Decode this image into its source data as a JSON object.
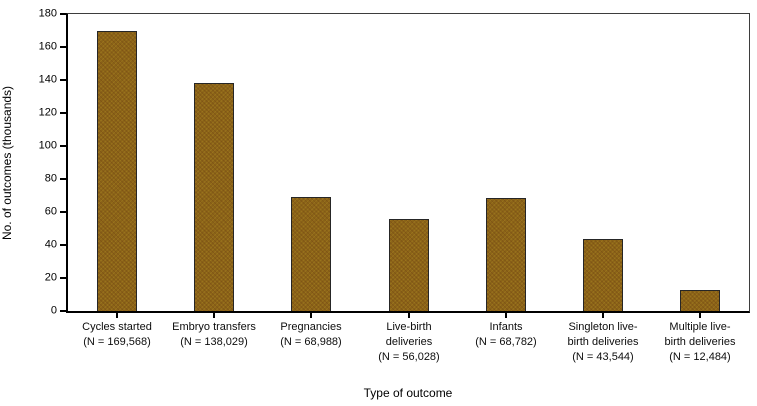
{
  "chart_data": {
    "type": "bar",
    "title": "",
    "xlabel": "Type of outcome",
    "ylabel": "No. of outcomes (thousands)",
    "ylim": [
      0,
      180
    ],
    "yticks": [
      0,
      20,
      40,
      60,
      80,
      100,
      120,
      140,
      160,
      180
    ],
    "grid": false,
    "legend_position": "none",
    "bar_color": "#8a6418",
    "bar_border_color": "#262626",
    "axis_color": "#000000",
    "categories": [
      [
        "Cycles started",
        "(N = 169,568)"
      ],
      [
        "Embryo transfers",
        "(N = 138,029)"
      ],
      [
        "Pregnancies",
        "(N = 68,988)"
      ],
      [
        "Live-birth",
        "deliveries",
        "(N = 56,028)"
      ],
      [
        "Infants",
        "(N = 68,782)"
      ],
      [
        "Singleton live-",
        "birth deliveries",
        "(N = 43,544)"
      ],
      [
        "Multiple live-",
        "birth deliveries",
        "(N = 12,484)"
      ]
    ],
    "values": [
      169.568,
      138.029,
      68.988,
      56.028,
      68.782,
      43.544,
      12.484
    ]
  }
}
